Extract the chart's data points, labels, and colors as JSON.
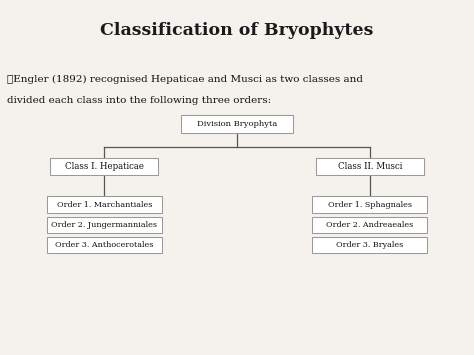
{
  "title": "Classification of Bryophytes",
  "title_bg": "#b94040",
  "title_text_color": "#1a1a1a",
  "body_bg": "#f5f2ee",
  "text_line1": "❖Engler (1892) recognised Hepaticae and Musci as two classes and",
  "text_line2": "divided each class into the following three orders:",
  "root_label": "Division Bryophyta",
  "left_class": "Class I. Hepaticae",
  "right_class": "Class II. Musci",
  "left_orders": [
    "Order 1. Marchantiales",
    "Order 2. Jungermanniales",
    "Order 3. Anthocerotales"
  ],
  "right_orders": [
    "Order 1. Sphagnales",
    "Order 2. Andreaeales",
    "Order 3. Bryales"
  ],
  "box_edge_color": "#999999",
  "line_color": "#555555",
  "text_color": "#111111",
  "box_face_color": "#ffffff"
}
